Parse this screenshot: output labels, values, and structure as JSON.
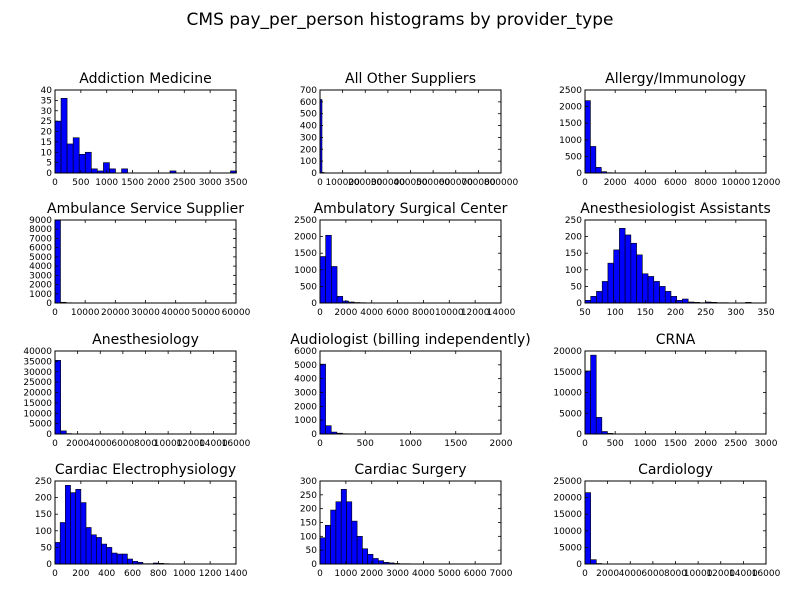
{
  "figure": {
    "title": "CMS pay_per_person histograms by provider_type"
  },
  "chart_data": [
    {
      "type": "bar",
      "title": "Addiction Medicine",
      "xlim": [
        0,
        3500
      ],
      "ylim": [
        0,
        40
      ],
      "xticks": [
        0,
        500,
        1000,
        1500,
        2000,
        2500,
        3000,
        3500
      ],
      "yticks": [
        0,
        5,
        10,
        15,
        20,
        25,
        30,
        35,
        40
      ],
      "bin_width": 117,
      "values": [
        25,
        36,
        14,
        17,
        9,
        10,
        2,
        1,
        5,
        2,
        0,
        2,
        0,
        0,
        0,
        0,
        0,
        0,
        0,
        1,
        0,
        0,
        0,
        0,
        0,
        0,
        0,
        0,
        0,
        1
      ]
    },
    {
      "type": "bar",
      "title": "All Other Suppliers",
      "xlim": [
        0,
        800000
      ],
      "ylim": [
        0,
        700
      ],
      "xticks": [
        0,
        100000,
        200000,
        300000,
        400000,
        500000,
        600000,
        700000,
        800000
      ],
      "xtick_labels": [
        "0",
        "100000",
        "200000",
        "300000",
        "400000",
        "500000",
        "600000",
        "700000",
        "800000"
      ],
      "yticks": [
        0,
        100,
        200,
        300,
        400,
        500,
        600,
        700
      ],
      "bin_width": 8800,
      "values": [
        620,
        5,
        2,
        1,
        1,
        0,
        0,
        0,
        0,
        0,
        0,
        0,
        0,
        0,
        0,
        0,
        0,
        0,
        0,
        0,
        0,
        0,
        0,
        0,
        0,
        0,
        0,
        0,
        0,
        0
      ]
    },
    {
      "type": "bar",
      "title": "Allergy/Immunology",
      "xlim": [
        0,
        12000
      ],
      "ylim": [
        0,
        2500
      ],
      "xticks": [
        0,
        2000,
        4000,
        6000,
        8000,
        10000,
        12000
      ],
      "yticks": [
        0,
        500,
        1000,
        1500,
        2000,
        2500
      ],
      "bin_width": 360,
      "values": [
        2180,
        800,
        170,
        40,
        10,
        3,
        2,
        1,
        0,
        0,
        0,
        0,
        0,
        0,
        0,
        0,
        0,
        0,
        0,
        0,
        0,
        0,
        0,
        0,
        0,
        0,
        0,
        0,
        0,
        1
      ]
    },
    {
      "type": "bar",
      "title": "Ambulance Service Supplier",
      "xlim": [
        0,
        60000
      ],
      "ylim": [
        0,
        9000
      ],
      "xticks": [
        0,
        10000,
        20000,
        30000,
        40000,
        50000,
        60000
      ],
      "yticks": [
        0,
        1000,
        2000,
        3000,
        4000,
        5000,
        6000,
        7000,
        8000,
        9000
      ],
      "bin_width": 1820,
      "values": [
        8980,
        80,
        30,
        10,
        5,
        0,
        0,
        0,
        0,
        0,
        0,
        0,
        0,
        0,
        0,
        0,
        0,
        0,
        0,
        0,
        0,
        0,
        0,
        0,
        0,
        0,
        0,
        0,
        0,
        1
      ]
    },
    {
      "type": "bar",
      "title": "Ambulatory Surgical Center",
      "xlim": [
        0,
        14000
      ],
      "ylim": [
        0,
        2500
      ],
      "xticks": [
        0,
        2000,
        4000,
        6000,
        8000,
        10000,
        12000,
        14000
      ],
      "yticks": [
        0,
        500,
        1000,
        1500,
        2000,
        2500
      ],
      "bin_width": 440,
      "values": [
        1400,
        2040,
        1100,
        200,
        60,
        30,
        15,
        10,
        5,
        3,
        2,
        1,
        0,
        0,
        0,
        0,
        0,
        0,
        0,
        0,
        0,
        0,
        0,
        0,
        0,
        0,
        0,
        0,
        0,
        0
      ]
    },
    {
      "type": "bar",
      "title": "Anesthesiologist Assistants",
      "xlim": [
        50,
        350
      ],
      "ylim": [
        0,
        250
      ],
      "xticks": [
        50,
        100,
        150,
        200,
        250,
        300,
        350
      ],
      "yticks": [
        0,
        50,
        100,
        150,
        200,
        250
      ],
      "x_start": 50,
      "bin_width": 9.5,
      "values": [
        8,
        20,
        35,
        65,
        120,
        160,
        225,
        205,
        180,
        145,
        88,
        80,
        65,
        50,
        35,
        20,
        8,
        12,
        3,
        2,
        1,
        3,
        2,
        1,
        1,
        0,
        0,
        0,
        2,
        0
      ]
    },
    {
      "type": "bar",
      "title": "Anesthesiology",
      "xlim": [
        0,
        16000
      ],
      "ylim": [
        0,
        40000
      ],
      "xticks": [
        0,
        2000,
        4000,
        6000,
        8000,
        10000,
        12000,
        14000,
        16000
      ],
      "yticks": [
        0,
        5000,
        10000,
        15000,
        20000,
        25000,
        30000,
        35000,
        40000
      ],
      "bin_width": 500,
      "values": [
        35500,
        1500,
        200,
        50,
        10,
        0,
        0,
        0,
        0,
        0,
        0,
        0,
        0,
        0,
        0,
        0,
        0,
        0,
        0,
        0,
        0,
        0,
        0,
        0,
        0,
        0,
        0,
        0,
        0,
        1
      ]
    },
    {
      "type": "bar",
      "title": "Audiologist (billing independently)",
      "xlim": [
        0,
        2000
      ],
      "ylim": [
        0,
        6000
      ],
      "xticks": [
        0,
        500,
        1000,
        1500,
        2000
      ],
      "yticks": [
        0,
        1000,
        2000,
        3000,
        4000,
        5000,
        6000
      ],
      "bin_width": 62,
      "values": [
        5050,
        600,
        140,
        60,
        20,
        10,
        5,
        3,
        2,
        1,
        1,
        0,
        0,
        0,
        0,
        0,
        0,
        0,
        0,
        0,
        0,
        0,
        0,
        0,
        0,
        0,
        0,
        0,
        0,
        0
      ]
    },
    {
      "type": "bar",
      "title": "CRNA",
      "xlim": [
        0,
        3000
      ],
      "ylim": [
        0,
        20000
      ],
      "xticks": [
        0,
        500,
        1000,
        1500,
        2000,
        2500,
        3000
      ],
      "yticks": [
        0,
        5000,
        10000,
        15000,
        20000
      ],
      "bin_width": 93,
      "values": [
        15200,
        19000,
        4000,
        600,
        150,
        40,
        10,
        5,
        2,
        1,
        0,
        0,
        0,
        0,
        0,
        0,
        0,
        0,
        0,
        0,
        0,
        0,
        0,
        0,
        0,
        0,
        0,
        0,
        0,
        1
      ]
    },
    {
      "type": "bar",
      "title": "Cardiac Electrophysiology",
      "xlim": [
        0,
        1400
      ],
      "ylim": [
        0,
        250
      ],
      "xticks": [
        0,
        200,
        400,
        600,
        800,
        1000,
        1200,
        1400
      ],
      "yticks": [
        0,
        50,
        100,
        150,
        200,
        250
      ],
      "bin_width": 40,
      "values": [
        65,
        125,
        237,
        215,
        225,
        185,
        110,
        88,
        80,
        60,
        50,
        33,
        30,
        30,
        15,
        8,
        5,
        1,
        1,
        3,
        2,
        1,
        0,
        0,
        0,
        0,
        0,
        0,
        0,
        0
      ]
    },
    {
      "type": "bar",
      "title": "Cardiac Surgery",
      "xlim": [
        0,
        7000
      ],
      "ylim": [
        0,
        300
      ],
      "xticks": [
        0,
        1000,
        2000,
        3000,
        4000,
        5000,
        6000,
        7000
      ],
      "yticks": [
        0,
        50,
        100,
        150,
        200,
        250,
        300
      ],
      "bin_width": 205,
      "values": [
        95,
        140,
        195,
        225,
        270,
        225,
        155,
        100,
        55,
        35,
        20,
        12,
        6,
        4,
        2,
        1,
        1,
        0,
        0,
        0,
        0,
        0,
        0,
        0,
        0,
        0,
        0,
        0,
        0,
        0
      ]
    },
    {
      "type": "bar",
      "title": "Cardiology",
      "xlim": [
        0,
        16000
      ],
      "ylim": [
        0,
        25000
      ],
      "xticks": [
        0,
        2000,
        4000,
        6000,
        8000,
        10000,
        12000,
        14000,
        16000
      ],
      "yticks": [
        0,
        5000,
        10000,
        15000,
        20000,
        25000
      ],
      "bin_width": 500,
      "values": [
        21500,
        1300,
        150,
        40,
        10,
        5,
        2,
        0,
        0,
        0,
        0,
        0,
        0,
        0,
        0,
        0,
        0,
        0,
        0,
        0,
        0,
        0,
        0,
        0,
        0,
        0,
        0,
        0,
        0,
        1
      ]
    }
  ],
  "colors": {
    "bar_fill": "#0000ff",
    "bar_edge": "#000000",
    "axes": "#000000",
    "background": "#ffffff"
  }
}
